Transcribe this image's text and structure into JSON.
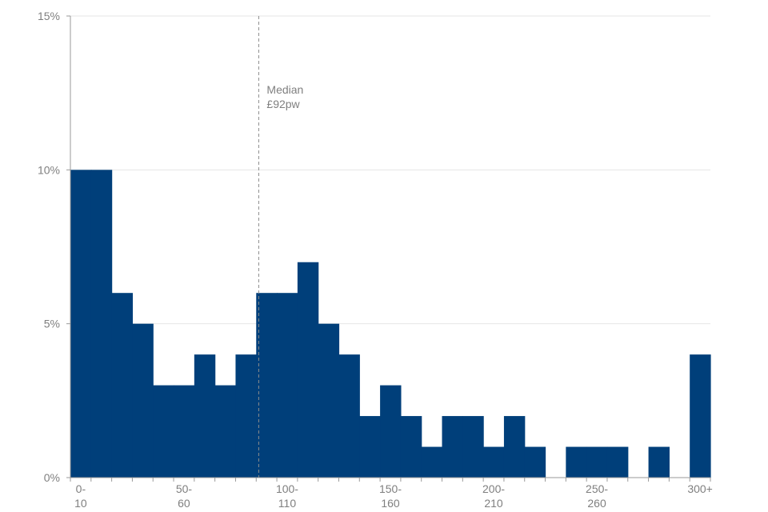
{
  "chart_data": {
    "type": "bar",
    "title": "",
    "xlabel": "",
    "ylabel": "",
    "ylim": [
      0,
      15
    ],
    "yticks": [
      "0%",
      "5%",
      "10%",
      "15%"
    ],
    "grid": true,
    "bar_color": "#003f7a",
    "grid_color": "#e6e6e6",
    "median_line_color": "#8c8c8c",
    "text_color": "#7f7f7f",
    "categories": [
      "0-10",
      "10-20",
      "20-30",
      "30-40",
      "40-50",
      "50-60",
      "60-70",
      "70-80",
      "80-90",
      "90-100",
      "100-110",
      "110-120",
      "120-130",
      "130-140",
      "140-150",
      "150-160",
      "160-170",
      "170-180",
      "180-190",
      "190-200",
      "200-210",
      "210-220",
      "220-230",
      "230-240",
      "240-250",
      "250-260",
      "260-270",
      "270-280",
      "280-290",
      "290-300",
      "300+"
    ],
    "values": [
      10,
      10,
      6,
      5,
      3,
      3,
      4,
      3,
      4,
      6,
      6,
      7,
      5,
      4,
      2,
      3,
      2,
      1,
      2,
      2,
      1,
      2,
      1,
      0,
      1,
      1,
      1,
      0,
      1,
      0,
      4
    ],
    "x_tick_labels": [
      {
        "index": 0,
        "line1": "0-",
        "line2": "10"
      },
      {
        "index": 5,
        "line1": "50-",
        "line2": "60"
      },
      {
        "index": 10,
        "line1": "100-",
        "line2": "110"
      },
      {
        "index": 15,
        "line1": "150-",
        "line2": "160"
      },
      {
        "index": 20,
        "line1": "200-",
        "line2": "210"
      },
      {
        "index": 25,
        "line1": "250-",
        "line2": "260"
      },
      {
        "index": 30,
        "line1": "300+",
        "line2": ""
      }
    ],
    "median": {
      "value": 92,
      "line1": "Median",
      "line2": "£92pw"
    }
  }
}
